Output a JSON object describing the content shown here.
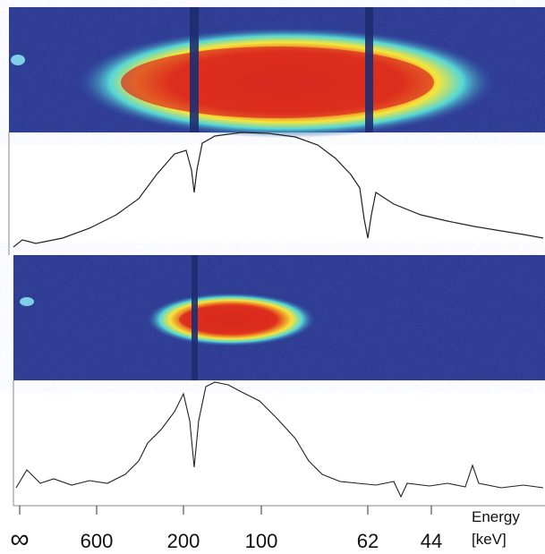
{
  "axis": {
    "ticks": [
      "∞",
      "600",
      "200",
      "100",
      "62",
      "44"
    ],
    "label": "Energy",
    "unit": "[keV]"
  }
}
